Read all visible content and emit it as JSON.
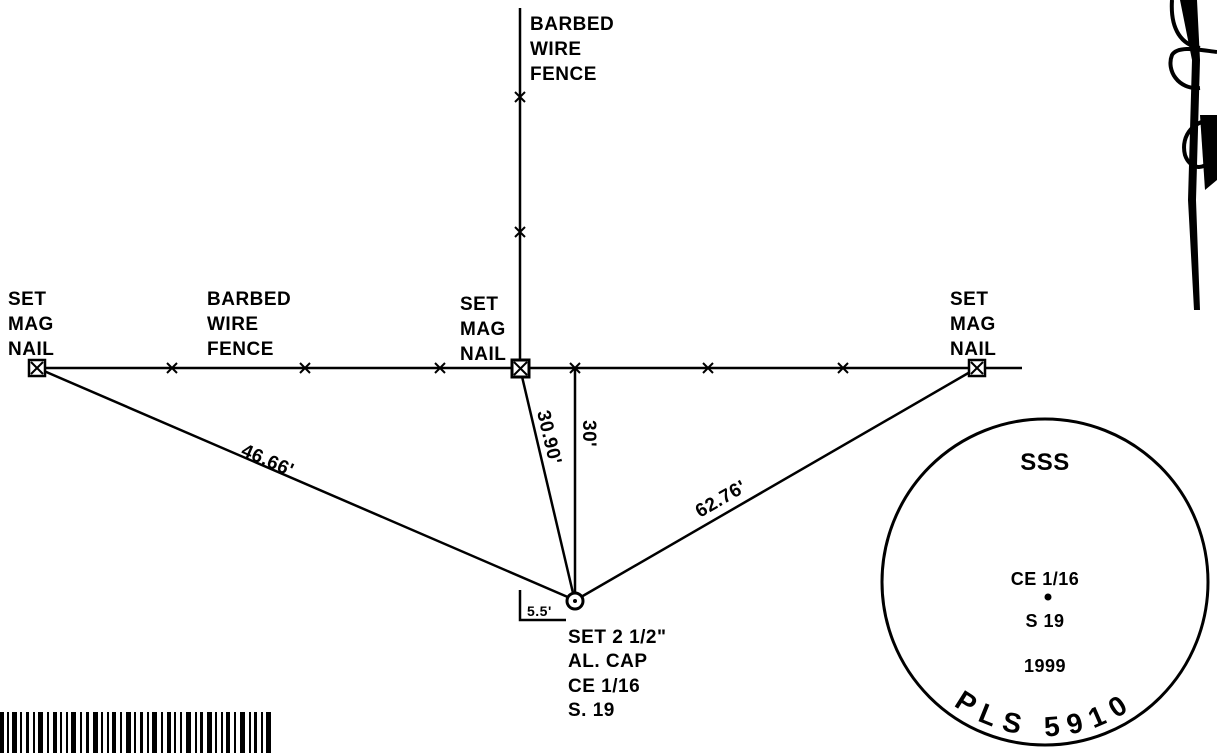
{
  "fence_labels": {
    "top": [
      "BARBED",
      "WIRE",
      "FENCE"
    ],
    "left": [
      "BARBED",
      "WIRE",
      "FENCE"
    ]
  },
  "nail_labels": {
    "left": [
      "SET",
      "MAG",
      "NAIL"
    ],
    "middle": [
      "SET",
      "MAG",
      "NAIL"
    ],
    "right": [
      "SET",
      "MAG",
      "NAIL"
    ]
  },
  "distances": {
    "left": "46.66'",
    "middle": "30.90'",
    "perpendicular": "30'",
    "right": "62.76'",
    "offset": "5.5'"
  },
  "cap_label": [
    "SET 2 1/2\"",
    "AL. CAP",
    "CE 1/16",
    "S. 19"
  ],
  "stamp": {
    "top": "SSS",
    "corner": "CE 1/16",
    "section": "S 19",
    "year": "1999",
    "license": "PLS 5910"
  }
}
